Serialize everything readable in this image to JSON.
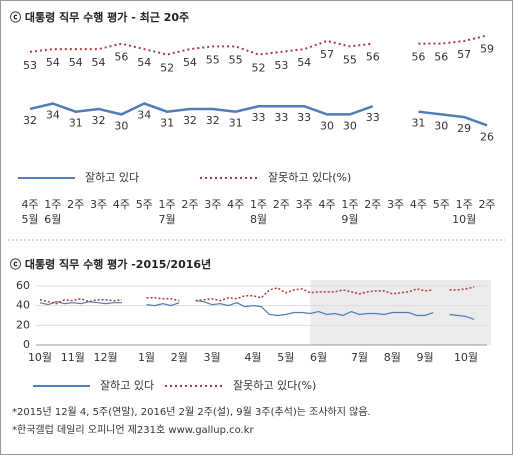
{
  "chart_data": [
    {
      "type": "line",
      "title": "ⓒ 대통령 직무 수행 평가 - 최근 20주",
      "categories": [
        "4주",
        "1주",
        "2주",
        "3주",
        "4주",
        "5주",
        "1주",
        "2주",
        "3주",
        "4주",
        "1주",
        "2주",
        "3주",
        "4주",
        "1주",
        "2주",
        "3주",
        "4주",
        "5주",
        "1주",
        "2주"
      ],
      "month_labels": [
        "5월",
        "6월",
        null,
        null,
        null,
        null,
        "7월",
        null,
        null,
        null,
        "8월",
        null,
        null,
        null,
        "9월",
        null,
        null,
        null,
        null,
        "10월",
        null
      ],
      "series": [
        {
          "name": "잘하고 있다",
          "color": "#4f7db5",
          "values": [
            32,
            34,
            31,
            32,
            30,
            34,
            31,
            32,
            32,
            31,
            33,
            33,
            33,
            30,
            30,
            33,
            null,
            31,
            30,
            29,
            26
          ]
        },
        {
          "name": "잘못하고 있다(%)",
          "color": "#b03a3a",
          "values": [
            53,
            54,
            54,
            54,
            56,
            54,
            52,
            54,
            55,
            55,
            52,
            53,
            54,
            57,
            55,
            56,
            null,
            56,
            56,
            57,
            59
          ]
        }
      ]
    },
    {
      "type": "line",
      "title": "ⓒ 대통령 직무 수행 평가 -2015/2016년",
      "categories": [
        "10월",
        null,
        null,
        null,
        "11월",
        null,
        null,
        null,
        "12월",
        null,
        null,
        null,
        null,
        "1월",
        null,
        null,
        null,
        "2월",
        null,
        null,
        null,
        "3월",
        null,
        null,
        null,
        null,
        "4월",
        null,
        null,
        null,
        "5월",
        null,
        null,
        null,
        "6월",
        null,
        null,
        null,
        null,
        "7월",
        null,
        null,
        null,
        "8월",
        null,
        null,
        null,
        "9월",
        null,
        null,
        null,
        null,
        "10월",
        null
      ],
      "ylim": [
        0,
        64
      ],
      "yticks": [
        0,
        20,
        40,
        60
      ],
      "grid": true,
      "series": [
        {
          "name": "잘하고 있다",
          "color": "#4f7db5",
          "values": [
            43,
            41,
            44,
            42,
            43,
            42,
            44,
            43,
            42,
            43,
            43,
            null,
            null,
            41,
            40,
            42,
            40,
            43,
            null,
            45,
            44,
            41,
            42,
            40,
            43,
            39,
            40,
            39,
            31,
            30,
            31,
            33,
            33,
            32,
            34,
            31,
            32,
            30,
            34,
            31,
            32,
            32,
            31,
            33,
            33,
            33,
            30,
            30,
            33,
            null,
            31,
            30,
            29,
            26
          ]
        },
        {
          "name": "잘못하고 있다(%)",
          "color": "#b03a3a",
          "values": [
            46,
            44,
            42,
            46,
            45,
            47,
            44,
            46,
            46,
            45,
            46,
            null,
            null,
            48,
            48,
            47,
            47,
            45,
            null,
            45,
            46,
            47,
            45,
            48,
            47,
            50,
            50,
            48,
            56,
            58,
            53,
            56,
            57,
            53,
            54,
            54,
            54,
            56,
            54,
            52,
            54,
            55,
            55,
            52,
            53,
            54,
            57,
            55,
            56,
            null,
            56,
            56,
            57,
            59
          ]
        }
      ]
    }
  ],
  "notes": [
    "*2015년 12월 4, 5주(연말), 2016년 2월 2주(설), 9월 3주(추석)는 조사하지 않음.",
    "*한국갤럽 데일리 오피니언 제231호 www.gallup.co.kr"
  ]
}
